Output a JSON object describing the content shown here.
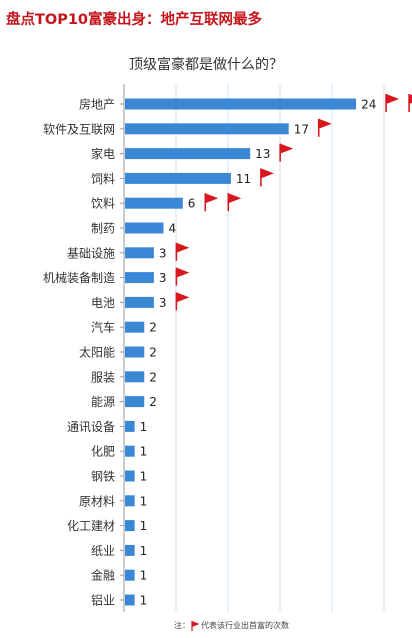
{
  "headline": "盘点TOP10富豪出身：地产互联网最多",
  "footnote": {
    "prefix": "注：",
    "suffix": "代表该行业出首富的次数"
  },
  "colors": {
    "bar": "#3a87d6",
    "flag": "#d7191f",
    "headline": "#c4161c",
    "gridline": "#d0e2f4"
  },
  "chart_data": {
    "type": "bar",
    "orientation": "horizontal",
    "title": "顶级富豪都是做什么的？",
    "grid": true,
    "categories": [
      "房地产",
      "软件及互联网",
      "家电",
      "饲料",
      "饮料",
      "制药",
      "基础设施",
      "机械装备制造",
      "电池",
      "汽车",
      "太阳能",
      "服装",
      "能源",
      "通讯设备",
      "化肥",
      "钢铁",
      "原材料",
      "化工建材",
      "纸业",
      "金融",
      "铝业"
    ],
    "values": [
      24,
      17,
      13,
      11,
      6,
      4,
      3,
      3,
      3,
      2,
      2,
      2,
      2,
      1,
      1,
      1,
      1,
      1,
      1,
      1,
      1
    ],
    "flags": [
      2,
      1,
      1,
      1,
      2,
      0,
      1,
      1,
      1,
      0,
      0,
      0,
      0,
      0,
      0,
      0,
      0,
      0,
      0,
      0,
      0
    ],
    "xlim": [
      0,
      27
    ]
  }
}
